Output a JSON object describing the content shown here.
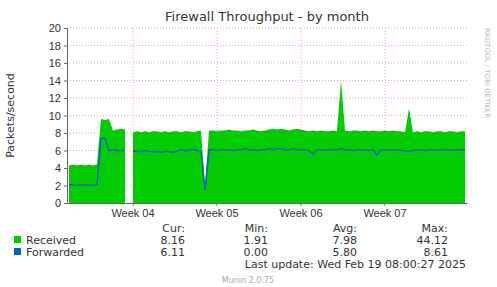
{
  "chart_data": {
    "type": "area",
    "title": "Firewall Throughput - by month",
    "y_label": "Packets/second",
    "categories": [
      null,
      null,
      null,
      null,
      null,
      null,
      null,
      null,
      null,
      null,
      null,
      null,
      null,
      null,
      null,
      null,
      "Week 04",
      null,
      null,
      null,
      null,
      null,
      null,
      null,
      null,
      null,
      null,
      null,
      null,
      null,
      null,
      null,
      null,
      null,
      null,
      null,
      null,
      "Week 05",
      null,
      null,
      null,
      null,
      null,
      null,
      null,
      null,
      null,
      null,
      null,
      null,
      null,
      null,
      null,
      null,
      null,
      null,
      null,
      null,
      "Week 06",
      null,
      null,
      null,
      null,
      null,
      null,
      null,
      null,
      null,
      null,
      null,
      null,
      null,
      null,
      null,
      null,
      null,
      null,
      null,
      null,
      "Week 07",
      null,
      null,
      null,
      null,
      null,
      null,
      null,
      null,
      null,
      null,
      null,
      null,
      null,
      null,
      null,
      null,
      null,
      null,
      null,
      null
    ],
    "series": [
      {
        "name": "Received",
        "type": "area",
        "color": "#00cc00",
        "values": [
          4.3,
          4.4,
          4.3,
          4.4,
          4.3,
          4.4,
          4.3,
          4.4,
          9.6,
          9.5,
          9.6,
          8.3,
          8.4,
          8.5,
          8.4,
          null,
          8.1,
          8.2,
          8.1,
          8.2,
          8.1,
          8.2,
          8.2,
          8.1,
          8.2,
          8.1,
          8.2,
          8.2,
          8.1,
          8.2,
          8.2,
          8.1,
          8.2,
          8.3,
          1.9,
          8.3,
          8.3,
          8.2,
          8.3,
          8.3,
          8.4,
          8.3,
          8.3,
          8.2,
          8.3,
          8.3,
          8.4,
          8.3,
          8.2,
          8.3,
          8.4,
          8.5,
          8.4,
          8.5,
          8.4,
          8.3,
          8.4,
          8.5,
          8.4,
          8.3,
          8.2,
          8.3,
          8.2,
          8.3,
          8.2,
          8.2,
          8.3,
          8.2,
          14.0,
          8.3,
          8.2,
          8.3,
          8.3,
          8.2,
          8.3,
          8.2,
          8.3,
          8.2,
          8.2,
          8.3,
          8.2,
          8.3,
          8.2,
          8.2,
          8.1,
          10.8,
          8.1,
          8.2,
          8.1,
          8.2,
          8.2,
          8.1,
          8.2,
          8.2,
          8.1,
          8.2,
          8.2,
          8.1,
          8.2,
          8.2
        ]
      },
      {
        "name": "Forwarded",
        "type": "line",
        "color": "#0066b3",
        "values": [
          2.1,
          2.1,
          2.0,
          2.1,
          2.1,
          2.1,
          2.0,
          2.1,
          7.4,
          7.4,
          6.0,
          6.1,
          6.0,
          6.0,
          6.1,
          null,
          6.0,
          5.9,
          5.9,
          6.0,
          5.9,
          5.9,
          5.9,
          5.8,
          5.9,
          5.9,
          5.8,
          5.9,
          6.1,
          6.0,
          6.0,
          6.1,
          6.0,
          5.9,
          1.4,
          6.1,
          6.1,
          6.0,
          6.1,
          6.1,
          6.1,
          6.0,
          6.1,
          6.1,
          6.2,
          6.1,
          6.1,
          6.0,
          6.1,
          6.1,
          6.2,
          6.1,
          6.2,
          6.2,
          6.1,
          6.1,
          6.2,
          6.1,
          6.1,
          6.1,
          6.0,
          5.6,
          6.1,
          6.1,
          6.0,
          6.1,
          6.1,
          6.1,
          6.2,
          6.1,
          6.1,
          6.0,
          6.1,
          6.1,
          6.1,
          6.0,
          6.1,
          5.5,
          6.1,
          6.1,
          6.0,
          6.1,
          6.1,
          6.0,
          6.0,
          5.9,
          6.0,
          6.1,
          6.1,
          6.0,
          6.1,
          6.1,
          6.0,
          6.1,
          6.1,
          6.1,
          6.0,
          6.1,
          6.1,
          6.1
        ]
      }
    ],
    "ylim": [
      0,
      20
    ],
    "yticks": [
      0,
      2,
      4,
      6,
      8,
      10,
      12,
      14,
      16,
      18,
      20
    ],
    "grid": true,
    "stats_table": {
      "columns": [
        "Cur:",
        "Min:",
        "Avg:",
        "Max:"
      ],
      "rows": [
        [
          "8.16",
          "1.91",
          "7.98",
          "44.12"
        ],
        [
          "6.11",
          "0.00",
          "5.80",
          "8.61"
        ]
      ]
    },
    "last_update": "Last update: Wed Feb 19 08:00:27 2025",
    "generator": "Munin 2.0.75",
    "watermark": "RRDTOOL / TOBI OETIKER"
  }
}
